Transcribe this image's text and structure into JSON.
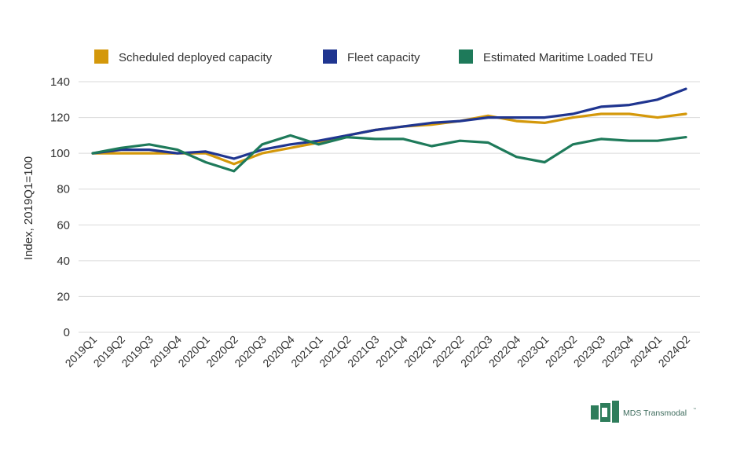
{
  "chart_data": {
    "type": "line",
    "title": "",
    "xlabel": "",
    "ylabel": "Index, 2019Q1=100",
    "ylim": [
      0,
      140
    ],
    "yticks": [
      0,
      20,
      40,
      60,
      80,
      100,
      120,
      140
    ],
    "grid": true,
    "legend_position": "top",
    "categories": [
      "2019Q1",
      "2019Q2",
      "2019Q3",
      "2019Q4",
      "2020Q1",
      "2020Q2",
      "2020Q3",
      "2020Q4",
      "2021Q1",
      "2021Q2",
      "2021Q3",
      "2021Q4",
      "2022Q1",
      "2022Q2",
      "2022Q3",
      "2022Q4",
      "2023Q1",
      "2023Q2",
      "2023Q3",
      "2023Q4",
      "2024Q1",
      "2024Q2"
    ],
    "series": [
      {
        "name": "Scheduled deployed capacity",
        "color": "#d4980a",
        "values": [
          100,
          100,
          100,
          100,
          100,
          94,
          100,
          103,
          106,
          110,
          113,
          115,
          116,
          118,
          121,
          118,
          117,
          120,
          122,
          122,
          120,
          122
        ]
      },
      {
        "name": "Fleet capacity",
        "color": "#1f3590",
        "values": [
          100,
          102,
          102,
          100,
          101,
          97,
          102,
          105,
          107,
          110,
          113,
          115,
          117,
          118,
          120,
          120,
          120,
          122,
          126,
          127,
          130,
          136
        ]
      },
      {
        "name": "Estimated Maritime Loaded TEU",
        "color": "#1e7a5a",
        "values": [
          100,
          103,
          105,
          102,
          95,
          90,
          105,
          110,
          105,
          109,
          108,
          108,
          104,
          107,
          106,
          98,
          95,
          105,
          108,
          107,
          107,
          109
        ]
      }
    ]
  },
  "brand": {
    "name": "MDS Transmodal",
    "trademark": "™",
    "logo_color": "#2e7d5b"
  }
}
